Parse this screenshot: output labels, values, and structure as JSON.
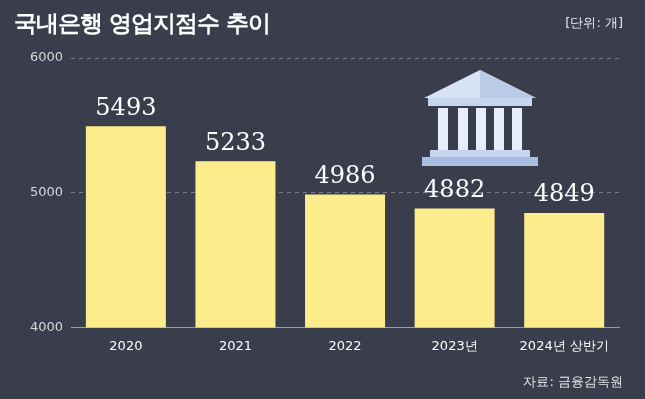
{
  "chart_data": {
    "type": "bar",
    "title": "국내은행 영업지점수 추이",
    "ylabel": "[단위: 개]",
    "source": "자료: 금융감독원",
    "categories": [
      "2020",
      "2021",
      "2022",
      "2023년",
      "2024년 상반기"
    ],
    "values": [
      5493,
      5233,
      4986,
      4882,
      4849
    ],
    "color": "#fdec8c",
    "ylim": [
      4000,
      6000
    ],
    "yticks": [
      4000,
      5000,
      6000
    ],
    "grid": true,
    "data_labels": true
  }
}
